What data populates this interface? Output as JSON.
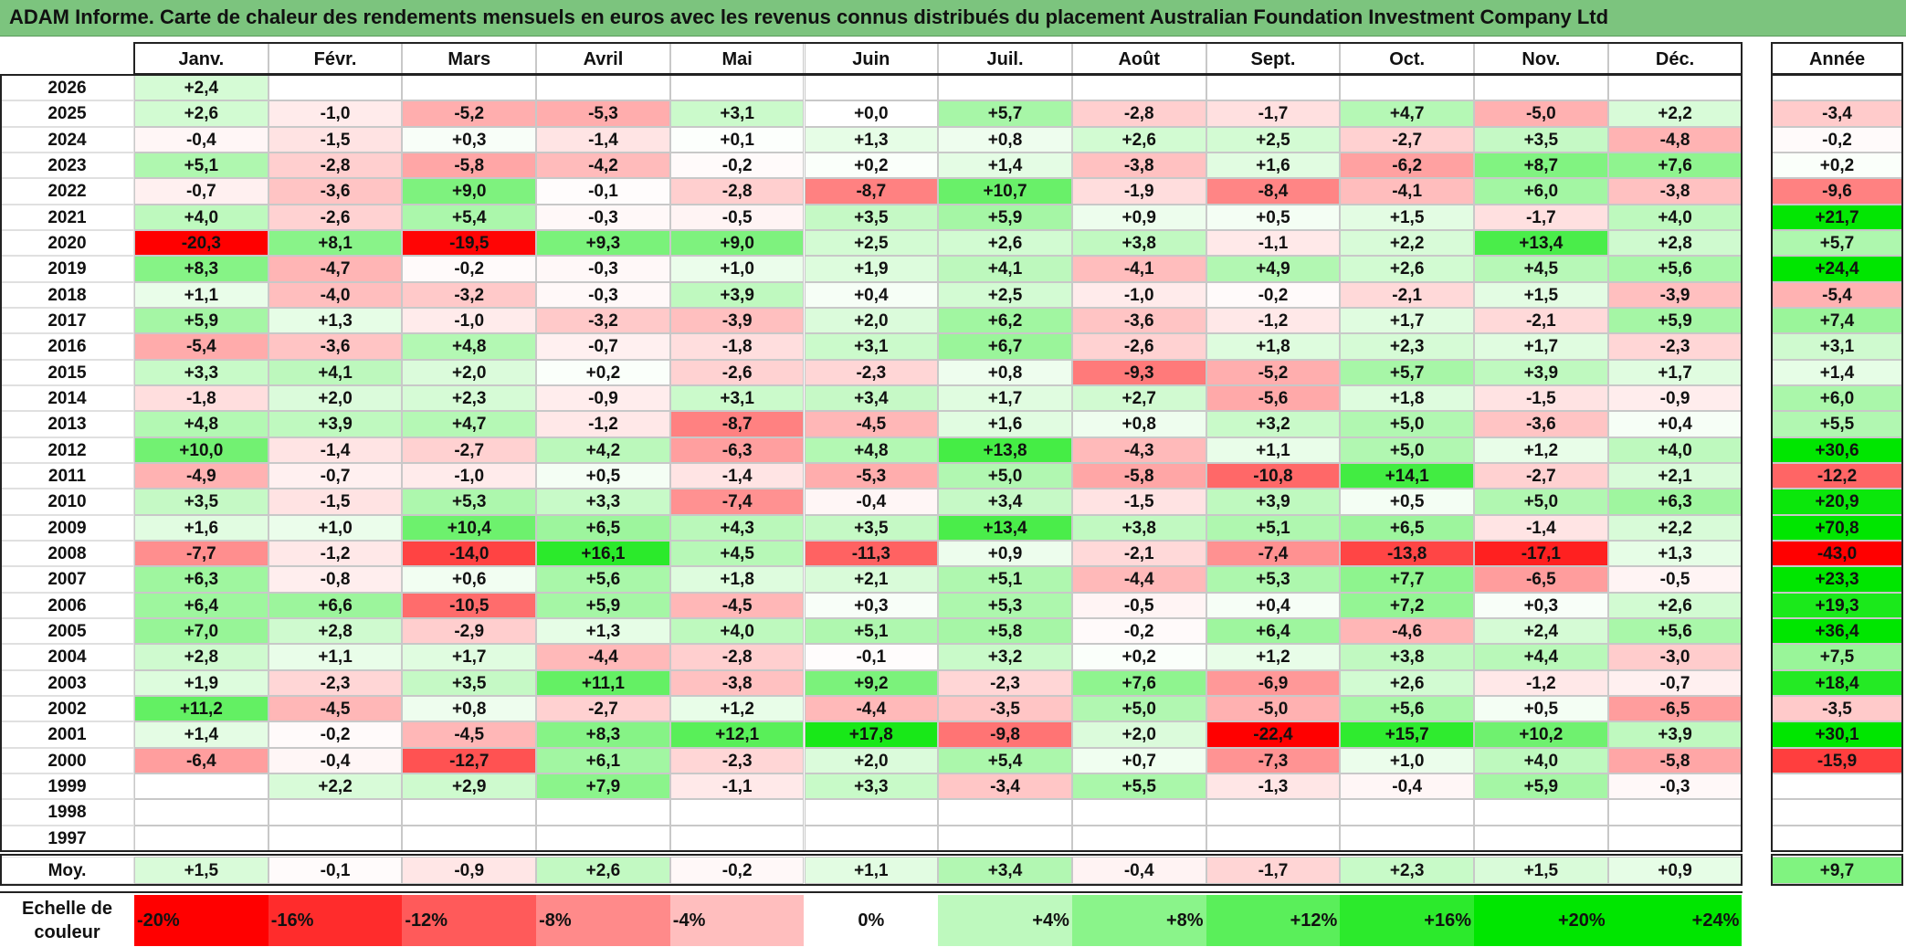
{
  "title": "ADAM Informe. Carte de chaleur des rendements mensuels en euros avec les revenus connus distribués du placement Australian Foundation Investment Company Ltd",
  "chart_data": {
    "type": "heatmap",
    "months": [
      "Janv.",
      "Févr.",
      "Mars",
      "Avril",
      "Mai",
      "Juin",
      "Juil.",
      "Août",
      "Sept.",
      "Oct.",
      "Nov.",
      "Déc."
    ],
    "year_header": "Année",
    "rows": [
      {
        "year": "2026",
        "values": [
          "+2,4",
          "",
          "",
          "",
          "",
          "",
          "",
          "",
          "",
          "",
          "",
          ""
        ],
        "annual": ""
      },
      {
        "year": "2025",
        "values": [
          "+2,6",
          "-1,0",
          "-5,2",
          "-5,3",
          "+3,1",
          "+0,0",
          "+5,7",
          "-2,8",
          "-1,7",
          "+4,7",
          "-5,0",
          "+2,2"
        ],
        "annual": "-3,4"
      },
      {
        "year": "2024",
        "values": [
          "-0,4",
          "-1,5",
          "+0,3",
          "-1,4",
          "+0,1",
          "+1,3",
          "+0,8",
          "+2,6",
          "+2,5",
          "-2,7",
          "+3,5",
          "-4,8"
        ],
        "annual": "-0,2"
      },
      {
        "year": "2023",
        "values": [
          "+5,1",
          "-2,8",
          "-5,8",
          "-4,2",
          "-0,2",
          "+0,2",
          "+1,4",
          "-3,8",
          "+1,6",
          "-6,2",
          "+8,7",
          "+7,6"
        ],
        "annual": "+0,2"
      },
      {
        "year": "2022",
        "values": [
          "-0,7",
          "-3,6",
          "+9,0",
          "-0,1",
          "-2,8",
          "-8,7",
          "+10,7",
          "-1,9",
          "-8,4",
          "-4,1",
          "+6,0",
          "-3,8"
        ],
        "annual": "-9,6"
      },
      {
        "year": "2021",
        "values": [
          "+4,0",
          "-2,6",
          "+5,4",
          "-0,3",
          "-0,5",
          "+3,5",
          "+5,9",
          "+0,9",
          "+0,5",
          "+1,5",
          "-1,7",
          "+4,0"
        ],
        "annual": "+21,7"
      },
      {
        "year": "2020",
        "values": [
          "-20,3",
          "+8,1",
          "-19,5",
          "+9,3",
          "+9,0",
          "+2,5",
          "+2,6",
          "+3,8",
          "-1,1",
          "+2,2",
          "+13,4",
          "+2,8"
        ],
        "annual": "+5,7"
      },
      {
        "year": "2019",
        "values": [
          "+8,3",
          "-4,7",
          "-0,2",
          "-0,3",
          "+1,0",
          "+1,9",
          "+4,1",
          "-4,1",
          "+4,9",
          "+2,6",
          "+4,5",
          "+5,6"
        ],
        "annual": "+24,4"
      },
      {
        "year": "2018",
        "values": [
          "+1,1",
          "-4,0",
          "-3,2",
          "-0,3",
          "+3,9",
          "+0,4",
          "+2,5",
          "-1,0",
          "-0,2",
          "-2,1",
          "+1,5",
          "-3,9"
        ],
        "annual": "-5,4"
      },
      {
        "year": "2017",
        "values": [
          "+5,9",
          "+1,3",
          "-1,0",
          "-3,2",
          "-3,9",
          "+2,0",
          "+6,2",
          "-3,6",
          "-1,2",
          "+1,7",
          "-2,1",
          "+5,9"
        ],
        "annual": "+7,4"
      },
      {
        "year": "2016",
        "values": [
          "-5,4",
          "-3,6",
          "+4,8",
          "-0,7",
          "-1,8",
          "+3,1",
          "+6,7",
          "-2,6",
          "+1,8",
          "+2,3",
          "+1,7",
          "-2,3"
        ],
        "annual": "+3,1"
      },
      {
        "year": "2015",
        "values": [
          "+3,3",
          "+4,1",
          "+2,0",
          "+0,2",
          "-2,6",
          "-2,3",
          "+0,8",
          "-9,3",
          "-5,2",
          "+5,7",
          "+3,9",
          "+1,7"
        ],
        "annual": "+1,4"
      },
      {
        "year": "2014",
        "values": [
          "-1,8",
          "+2,0",
          "+2,3",
          "-0,9",
          "+3,1",
          "+3,4",
          "+1,7",
          "+2,7",
          "-5,6",
          "+1,8",
          "-1,5",
          "-0,9"
        ],
        "annual": "+6,0"
      },
      {
        "year": "2013",
        "values": [
          "+4,8",
          "+3,9",
          "+4,7",
          "-1,2",
          "-8,7",
          "-4,5",
          "+1,6",
          "+0,8",
          "+3,2",
          "+5,0",
          "-3,6",
          "+0,4"
        ],
        "annual": "+5,5"
      },
      {
        "year": "2012",
        "values": [
          "+10,0",
          "-1,4",
          "-2,7",
          "+4,2",
          "-6,3",
          "+4,8",
          "+13,8",
          "-4,3",
          "+1,1",
          "+5,0",
          "+1,2",
          "+4,0"
        ],
        "annual": "+30,6"
      },
      {
        "year": "2011",
        "values": [
          "-4,9",
          "-0,7",
          "-1,0",
          "+0,5",
          "-1,4",
          "-5,3",
          "+5,0",
          "-5,8",
          "-10,8",
          "+14,1",
          "-2,7",
          "+2,1"
        ],
        "annual": "-12,2"
      },
      {
        "year": "2010",
        "values": [
          "+3,5",
          "-1,5",
          "+5,3",
          "+3,3",
          "-7,4",
          "-0,4",
          "+3,4",
          "-1,5",
          "+3,9",
          "+0,5",
          "+5,0",
          "+6,3"
        ],
        "annual": "+20,9"
      },
      {
        "year": "2009",
        "values": [
          "+1,6",
          "+1,0",
          "+10,4",
          "+6,5",
          "+4,3",
          "+3,5",
          "+13,4",
          "+3,8",
          "+5,1",
          "+6,5",
          "-1,4",
          "+2,2"
        ],
        "annual": "+70,8"
      },
      {
        "year": "2008",
        "values": [
          "-7,7",
          "-1,2",
          "-14,0",
          "+16,1",
          "+4,5",
          "-11,3",
          "+0,9",
          "-2,1",
          "-7,4",
          "-13,8",
          "-17,1",
          "+1,3"
        ],
        "annual": "-43,0"
      },
      {
        "year": "2007",
        "values": [
          "+6,3",
          "-0,8",
          "+0,6",
          "+5,6",
          "+1,8",
          "+2,1",
          "+5,1",
          "-4,4",
          "+5,3",
          "+7,7",
          "-6,5",
          "-0,5"
        ],
        "annual": "+23,3"
      },
      {
        "year": "2006",
        "values": [
          "+6,4",
          "+6,6",
          "-10,5",
          "+5,9",
          "-4,5",
          "+0,3",
          "+5,3",
          "-0,5",
          "+0,4",
          "+7,2",
          "+0,3",
          "+2,6"
        ],
        "annual": "+19,3"
      },
      {
        "year": "2005",
        "values": [
          "+7,0",
          "+2,8",
          "-2,9",
          "+1,3",
          "+4,0",
          "+5,1",
          "+5,8",
          "-0,2",
          "+6,4",
          "-4,6",
          "+2,4",
          "+5,6"
        ],
        "annual": "+36,4"
      },
      {
        "year": "2004",
        "values": [
          "+2,8",
          "+1,1",
          "+1,7",
          "-4,4",
          "-2,8",
          "-0,1",
          "+3,2",
          "+0,2",
          "+1,2",
          "+3,8",
          "+4,4",
          "-3,0"
        ],
        "annual": "+7,5"
      },
      {
        "year": "2003",
        "values": [
          "+1,9",
          "-2,3",
          "+3,5",
          "+11,1",
          "-3,8",
          "+9,2",
          "-2,3",
          "+7,6",
          "-6,9",
          "+2,6",
          "-1,2",
          "-0,7"
        ],
        "annual": "+18,4"
      },
      {
        "year": "2002",
        "values": [
          "+11,2",
          "-4,5",
          "+0,8",
          "-2,7",
          "+1,2",
          "-4,4",
          "-3,5",
          "+5,0",
          "-5,0",
          "+5,6",
          "+0,5",
          "-6,5"
        ],
        "annual": "-3,5"
      },
      {
        "year": "2001",
        "values": [
          "+1,4",
          "-0,2",
          "-4,5",
          "+8,3",
          "+12,1",
          "+17,8",
          "-9,8",
          "+2,0",
          "-22,4",
          "+15,7",
          "+10,2",
          "+3,9"
        ],
        "annual": "+30,1"
      },
      {
        "year": "2000",
        "values": [
          "-6,4",
          "-0,4",
          "-12,7",
          "+6,1",
          "-2,3",
          "+2,0",
          "+5,4",
          "+0,7",
          "-7,3",
          "+1,0",
          "+4,0",
          "-5,8"
        ],
        "annual": "-15,9"
      },
      {
        "year": "1999",
        "values": [
          "",
          "+2,2",
          "+2,9",
          "+7,9",
          "-1,1",
          "+3,3",
          "-3,4",
          "+5,5",
          "-1,3",
          "-0,4",
          "+5,9",
          "-0,3"
        ],
        "annual": ""
      },
      {
        "year": "1998",
        "values": [
          "",
          "",
          "",
          "",
          "",
          "",
          "",
          "",
          "",
          "",
          "",
          ""
        ],
        "annual": ""
      },
      {
        "year": "1997",
        "values": [
          "",
          "",
          "",
          "",
          "",
          "",
          "",
          "",
          "",
          "",
          "",
          ""
        ],
        "annual": ""
      }
    ],
    "average": {
      "label": "Moy.",
      "values": [
        "+1,5",
        "-0,1",
        "-0,9",
        "+2,6",
        "-0,2",
        "+1,1",
        "+3,4",
        "-0,4",
        "-1,7",
        "+2,3",
        "+1,5",
        "+0,9"
      ],
      "annual": "+9,7"
    },
    "scale": {
      "label_line1": "Echelle de",
      "label_line2": "couleur",
      "items": [
        {
          "label": "-20%",
          "value": -20
        },
        {
          "label": "-16%",
          "value": -16
        },
        {
          "label": "-12%",
          "value": -12
        },
        {
          "label": "-8%",
          "value": -8
        },
        {
          "label": "-4%",
          "value": -4
        },
        {
          "label": "0%",
          "value": 0
        },
        {
          "label": "+4%",
          "value": 4
        },
        {
          "label": "+8%",
          "value": 8
        },
        {
          "label": "+12%",
          "value": 12
        },
        {
          "label": "+16%",
          "value": 16
        },
        {
          "label": "+20%",
          "value": 20
        },
        {
          "label": "+24%",
          "value": 24
        }
      ]
    },
    "colors": {
      "negative_max": "#ff0000",
      "neutral": "#ffffff",
      "positive_max": "#00e600",
      "title_bar": "#7cc47e"
    }
  }
}
